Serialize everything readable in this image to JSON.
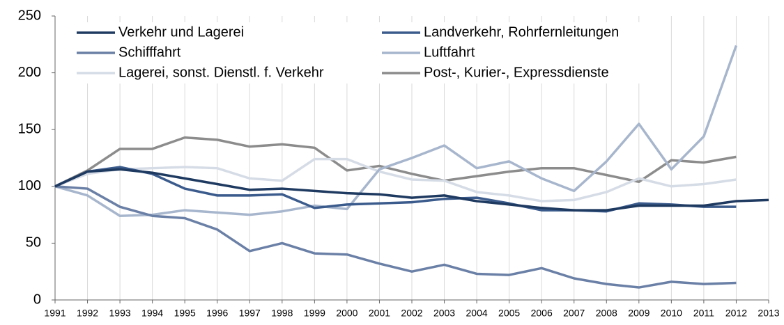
{
  "chart_data": {
    "type": "line",
    "categories": [
      1991,
      1992,
      1993,
      1994,
      1995,
      1996,
      1997,
      1998,
      1999,
      2000,
      2001,
      2002,
      2003,
      2004,
      2005,
      2006,
      2007,
      2008,
      2009,
      2010,
      2011,
      2012,
      2013
    ],
    "ylim": [
      0,
      250
    ],
    "yticks": [
      0,
      50,
      100,
      150,
      200,
      250
    ],
    "grid": true,
    "legend": "top-left",
    "series": [
      {
        "name": "Verkehr und Lagerei",
        "color": "#1f3a60",
        "values": [
          100,
          113,
          115,
          112,
          107,
          102,
          97,
          98,
          96,
          94,
          93,
          90,
          92,
          87,
          84,
          81,
          79,
          79,
          83,
          83,
          83,
          87,
          88
        ]
      },
      {
        "name": "Landverkehr, Rohrfernleitungen",
        "color": "#3b5b8c",
        "values": [
          100,
          113,
          117,
          111,
          98,
          92,
          92,
          93,
          81,
          84,
          85,
          86,
          89,
          90,
          85,
          79,
          79,
          78,
          85,
          84,
          82,
          82,
          null
        ]
      },
      {
        "name": "Schifffahrt",
        "color": "#6b80a6",
        "values": [
          100,
          98,
          82,
          74,
          72,
          62,
          43,
          50,
          41,
          40,
          32,
          25,
          31,
          23,
          22,
          28,
          19,
          14,
          11,
          16,
          14,
          15,
          null
        ]
      },
      {
        "name": "Luftfahrt",
        "color": "#a7b6cd",
        "values": [
          100,
          92,
          74,
          75,
          79,
          77,
          75,
          78,
          83,
          80,
          115,
          125,
          136,
          116,
          122,
          107,
          96,
          122,
          155,
          115,
          144,
          224,
          null
        ]
      },
      {
        "name": "Lagerei, sonst. Dienstl. f. Verkehr",
        "color": "#d6dce6",
        "values": [
          100,
          111,
          115,
          116,
          117,
          116,
          107,
          105,
          124,
          124,
          113,
          106,
          105,
          95,
          92,
          87,
          88,
          95,
          107,
          100,
          102,
          106,
          null
        ]
      },
      {
        "name": "Post-, Kurier-, Expressdienste",
        "color": "#8c8c8c",
        "values": [
          100,
          114,
          133,
          133,
          143,
          141,
          135,
          137,
          134,
          114,
          118,
          111,
          105,
          109,
          113,
          116,
          116,
          110,
          104,
          123,
          121,
          126,
          null
        ]
      }
    ]
  }
}
